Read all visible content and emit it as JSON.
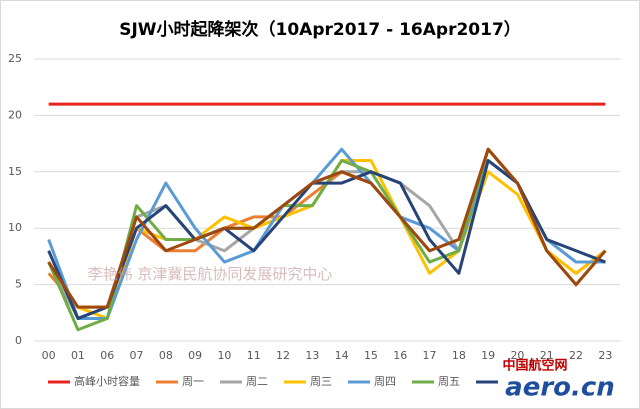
{
  "chart_data": {
    "type": "line",
    "title": "SJW小时起降架次（10Apr2017 - 16Apr2017）",
    "categories": [
      "00",
      "01",
      "06",
      "07",
      "08",
      "09",
      "10",
      "11",
      "12",
      "13",
      "14",
      "15",
      "16",
      "17",
      "18",
      "19",
      "20",
      "21",
      "22",
      "23"
    ],
    "series": [
      {
        "name": "高峰小时容量",
        "color": "#e8221c",
        "values": [
          21,
          21,
          21,
          21,
          21,
          21,
          21,
          21,
          21,
          21,
          21,
          21,
          21,
          21,
          21,
          21,
          21,
          21,
          21,
          21
        ]
      },
      {
        "name": "周一",
        "color": "#ed7d31",
        "values": [
          6,
          3,
          3,
          10,
          8,
          8,
          10,
          11,
          11,
          13,
          15,
          14,
          11,
          8,
          9,
          17,
          14,
          8,
          6,
          8
        ]
      },
      {
        "name": "周二",
        "color": "#a5a5a5",
        "values": [
          7,
          2,
          3,
          11,
          12,
          9,
          8,
          10,
          12,
          14,
          15,
          15,
          14,
          12,
          8,
          17,
          14,
          9,
          7,
          7
        ]
      },
      {
        "name": "周三",
        "color": "#ffc000",
        "values": [
          7,
          3,
          2,
          10,
          9,
          9,
          11,
          10,
          11,
          12,
          16,
          16,
          11,
          6,
          8,
          15,
          13,
          8,
          6,
          8
        ]
      },
      {
        "name": "周四",
        "color": "#5b9bd5",
        "values": [
          9,
          2,
          2,
          9,
          14,
          10,
          7,
          8,
          12,
          14,
          17,
          14,
          11,
          10,
          8,
          16,
          14,
          9,
          7,
          7
        ]
      },
      {
        "name": "周五",
        "color": "#70ad47",
        "values": [
          7,
          1,
          2,
          12,
          9,
          9,
          10,
          10,
          12,
          12,
          16,
          15,
          11,
          7,
          8,
          17,
          14,
          8,
          5,
          8
        ]
      },
      {
        "color": "#264478",
        "values": [
          8,
          2,
          3,
          10,
          12,
          9,
          10,
          8,
          11,
          14,
          14,
          15,
          14,
          9,
          6,
          16,
          14,
          9,
          8,
          7
        ]
      },
      {
        "color": "#9e480e",
        "values": [
          7,
          3,
          3,
          11,
          8,
          9,
          10,
          10,
          12,
          14,
          15,
          14,
          11,
          8,
          9,
          17,
          14,
          8,
          5,
          8
        ]
      }
    ],
    "ylim": [
      0,
      25
    ],
    "yticks": [
      0,
      5,
      10,
      15,
      20,
      25
    ],
    "grid": true,
    "watermark": "李艳伟 京津冀民航协同发展研究中心",
    "logo": {
      "top": "中国航空网",
      "bottom": "aero.cn"
    }
  }
}
